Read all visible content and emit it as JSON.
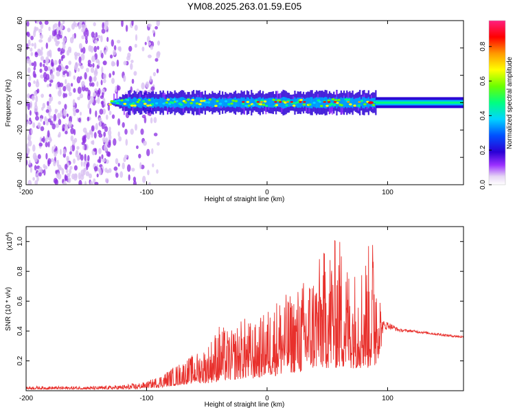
{
  "figure_title": "YM08.2025.263.01.59.E05",
  "chart_data": [
    {
      "type": "heatmap",
      "title": "YM08.2025.263.01.59.E05",
      "xlabel": "Height of straight line (km)",
      "ylabel": "Frequency (Hz)",
      "xlim": [
        -200,
        163
      ],
      "ylim": [
        -60,
        60
      ],
      "xticks": [
        -200,
        -100,
        0,
        100
      ],
      "yticks": [
        -60,
        -40,
        -20,
        0,
        20,
        40,
        60
      ],
      "colorbar": {
        "label": "Normalized spectral amplitude",
        "range": [
          0.0,
          0.95
        ],
        "ticks": [
          0.0,
          0.2,
          0.4,
          0.6,
          0.8
        ],
        "colormap": [
          "#e6d6f5",
          "#9b30ff",
          "#2a00d5",
          "#0050ff",
          "#00d5ff",
          "#00ff80",
          "#6aff00",
          "#ffff00",
          "#ff9900",
          "#ff0000",
          "#ff2080"
        ]
      },
      "regions": [
        {
          "name": "scattered noise",
          "x_range": [
            -200,
            -100
          ],
          "freq_range": [
            -60,
            60
          ],
          "amplitude_range": [
            0.0,
            0.15
          ]
        },
        {
          "name": "narrow band signal",
          "x_range": [
            -130,
            90
          ],
          "center_freq": 0,
          "half_width_hz": 6,
          "peak_amplitude": 0.9
        },
        {
          "name": "steady tone",
          "x_range": [
            90,
            163
          ],
          "center_freq": 0,
          "half_width_hz": 4,
          "amplitude": 0.5
        }
      ]
    },
    {
      "type": "line",
      "title": "",
      "xlabel": "Height of straight line (km)",
      "ylabel": "SNR (10 * v/v)",
      "yscale_label": "(x10",
      "yscale_exponent": "4",
      "xlim": [
        -200,
        163
      ],
      "ylim": [
        0,
        1.1
      ],
      "xticks": [
        -200,
        -100,
        0,
        100
      ],
      "yticks": [
        0.2,
        0.4,
        0.6,
        0.8,
        1.0
      ],
      "series": [
        {
          "name": "SNR",
          "color": "#e8302c",
          "x": [
            -200,
            -180,
            -160,
            -140,
            -120,
            -110,
            -100,
            -90,
            -80,
            -70,
            -60,
            -50,
            -40,
            -30,
            -20,
            -10,
            0,
            10,
            20,
            30,
            40,
            50,
            60,
            70,
            80,
            90,
            95,
            100,
            110,
            120,
            130,
            140,
            150,
            163
          ],
          "envelope_high": [
            0.03,
            0.03,
            0.03,
            0.03,
            0.04,
            0.05,
            0.06,
            0.1,
            0.15,
            0.2,
            0.25,
            0.3,
            0.45,
            0.4,
            0.5,
            0.45,
            0.55,
            0.65,
            0.65,
            0.75,
            0.85,
            0.98,
            1.05,
            0.8,
            0.9,
            1.1,
            0.55,
            0.5,
            0.43,
            0.42,
            0.41,
            0.4,
            0.39,
            0.38
          ],
          "envelope_low": [
            0.01,
            0.01,
            0.01,
            0.01,
            0.01,
            0.01,
            0.02,
            0.02,
            0.03,
            0.04,
            0.05,
            0.05,
            0.06,
            0.07,
            0.08,
            0.08,
            0.1,
            0.1,
            0.12,
            0.12,
            0.15,
            0.15,
            0.15,
            0.15,
            0.15,
            0.15,
            0.3,
            0.38,
            0.38,
            0.38,
            0.37,
            0.36,
            0.35,
            0.34
          ]
        }
      ]
    }
  ]
}
